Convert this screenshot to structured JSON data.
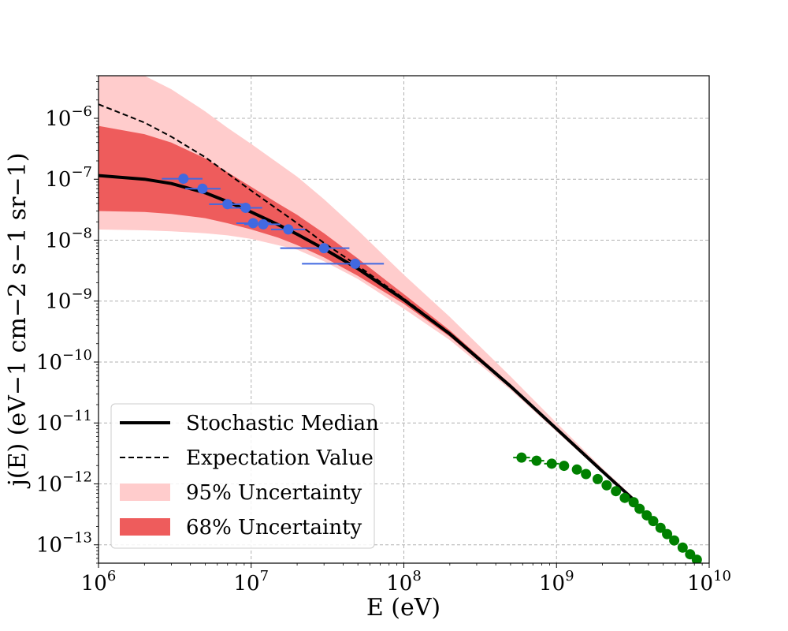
{
  "chart_data": {
    "type": "line",
    "xlabel": "E (eV)",
    "ylabel": "j(E) (eV−1 cm−2 s−1 sr−1)",
    "xscale": "log",
    "yscale": "log",
    "xlim": [
      1000000.0,
      10000000000.0
    ],
    "ylim": [
      5e-14,
      5e-06
    ],
    "grid": true,
    "legend_position": "bottom-left",
    "x_ticks": [
      {
        "value": 1000000.0,
        "base": "10",
        "exp": "6"
      },
      {
        "value": 10000000.0,
        "base": "10",
        "exp": "7"
      },
      {
        "value": 100000000.0,
        "base": "10",
        "exp": "8"
      },
      {
        "value": 1000000000.0,
        "base": "10",
        "exp": "9"
      },
      {
        "value": 10000000000.0,
        "base": "10",
        "exp": "10"
      }
    ],
    "y_ticks": [
      {
        "value": 1e-13,
        "base": "10",
        "exp": "−13"
      },
      {
        "value": 1e-12,
        "base": "10",
        "exp": "−12"
      },
      {
        "value": 1e-11,
        "base": "10",
        "exp": "−11"
      },
      {
        "value": 1e-10,
        "base": "10",
        "exp": "−10"
      },
      {
        "value": 1e-09,
        "base": "10",
        "exp": "−9"
      },
      {
        "value": 1e-08,
        "base": "10",
        "exp": "−8"
      },
      {
        "value": 1e-07,
        "base": "10",
        "exp": "−7"
      },
      {
        "value": 1e-06,
        "base": "10",
        "exp": "−6"
      }
    ],
    "series": [
      {
        "name": "Stochastic Median",
        "style": "solid",
        "color": "#000000",
        "x": [
          1000000.0,
          2000000.0,
          3000000.0,
          5000000.0,
          7000000.0,
          10000000.0,
          15000000.0,
          20000000.0,
          30000000.0,
          50000000.0,
          100000000.0,
          200000000.0,
          500000000.0,
          1000000000.0,
          2000000000.0,
          3200000000.0
        ],
        "y": [
          1.15e-07,
          1e-07,
          8.5e-08,
          6e-08,
          4.3e-08,
          2.9e-08,
          1.8e-08,
          1.25e-08,
          7.2e-09,
          3.4e-09,
          1.05e-09,
          2.9e-10,
          4e-11,
          8e-12,
          1.6e-12,
          5.5e-13
        ]
      },
      {
        "name": "Expectation Value",
        "style": "dashed",
        "color": "#000000",
        "x": [
          1000000.0,
          2000000.0,
          3000000.0,
          5000000.0,
          7000000.0,
          10000000.0,
          20000000.0,
          30000000.0,
          50000000.0,
          100000000.0,
          200000000.0,
          500000000.0,
          1000000000.0,
          2000000000.0,
          3200000000.0
        ],
        "y": [
          1.7e-06,
          8.5e-07,
          5e-07,
          2.3e-07,
          1.25e-07,
          6.5e-08,
          1.9e-08,
          9e-09,
          3.8e-09,
          1.1e-09,
          3e-10,
          4.1e-11,
          8.2e-12,
          1.65e-12,
          5.6e-13
        ]
      }
    ],
    "bands": [
      {
        "name": "95% Uncertainty",
        "color": "#ffcccc",
        "x": [
          1000000.0,
          2000000.0,
          3000000.0,
          5000000.0,
          7000000.0,
          10000000.0,
          20000000.0,
          30000000.0,
          50000000.0,
          100000000.0,
          200000000.0,
          500000000.0,
          1000000000.0,
          2000000000.0,
          3200000000.0
        ],
        "upper": [
          5e-06,
          5e-06,
          3e-06,
          1.3e-06,
          7e-07,
          3.8e-07,
          1.1e-07,
          4.7e-08,
          1.45e-08,
          2.7e-09,
          5.5e-10,
          5.8e-11,
          1e-11,
          1.8e-12,
          6e-13
        ],
        "lower": [
          1.5e-08,
          1.45e-08,
          1.4e-08,
          1.3e-08,
          1.2e-08,
          1.05e-08,
          7e-09,
          4.5e-09,
          2.3e-09,
          7.5e-10,
          2.3e-10,
          3.5e-11,
          7.2e-12,
          1.5e-12,
          5.2e-13
        ]
      },
      {
        "name": "68% Uncertainty",
        "color": "#ee5c5c",
        "x": [
          1000000.0,
          2000000.0,
          3000000.0,
          5000000.0,
          7000000.0,
          10000000.0,
          15000000.0,
          20000000.0,
          30000000.0,
          50000000.0,
          100000000.0,
          200000000.0,
          500000000.0,
          1000000000.0,
          2000000000.0,
          3200000000.0
        ],
        "upper": [
          7.5e-07,
          5.5e-07,
          4e-07,
          2.2e-07,
          1.3e-07,
          7.5e-08,
          4e-08,
          2.6e-08,
          1.3e-08,
          5e-09,
          1.3e-09,
          3.3e-10,
          4.3e-11,
          8.4e-12,
          1.7e-12,
          5.7e-13
        ],
        "lower": [
          3e-08,
          2.9e-08,
          2.7e-08,
          2.3e-08,
          1.9e-08,
          1.5e-08,
          1.1e-08,
          8.3e-09,
          5.2e-09,
          2.6e-09,
          9e-10,
          2.6e-10,
          3.8e-11,
          7.7e-12,
          1.55e-12,
          5.3e-13
        ]
      }
    ],
    "data_points": [
      {
        "color": "#4169e1",
        "points": [
          {
            "x": 3600000.0,
            "y": 1.02e-07,
            "xerr": [
              2600000.0,
              4800000.0
            ]
          },
          {
            "x": 4800000.0,
            "y": 7e-08,
            "xerr": [
              3700000.0,
              6300000.0
            ]
          },
          {
            "x": 7000000.0,
            "y": 3.9e-08,
            "xerr": [
              5300000.0,
              9000000.0
            ]
          },
          {
            "x": 9200000.0,
            "y": 3.4e-08,
            "xerr": [
              6900000.0,
              11800000.0
            ]
          },
          {
            "x": 10300000.0,
            "y": 1.9e-08,
            "xerr": [
              8000000.0,
              13500000.0
            ]
          },
          {
            "x": 12000000.0,
            "y": 1.82e-08,
            "xerr": [
              9000000.0,
              15500000.0
            ]
          },
          {
            "x": 17500000.0,
            "y": 1.5e-08,
            "xerr": [
              13500000.0,
              22500000.0
            ]
          },
          {
            "x": 30000000.0,
            "y": 7.4e-09,
            "xerr": [
              15500000.0,
              44000000.0
            ]
          },
          {
            "x": 48000000.0,
            "y": 4.1e-09,
            "xerr": [
              21500000.0,
              74000000.0
            ]
          }
        ]
      },
      {
        "color": "#008000",
        "points": [
          {
            "x": 590000000.0,
            "y": 2.7e-12,
            "xerr": [
              520000000.0,
              670000000.0
            ]
          },
          {
            "x": 740000000.0,
            "y": 2.4e-12,
            "xerr": [
              660000000.0,
              830000000.0
            ]
          },
          {
            "x": 930000000.0,
            "y": 2.15e-12,
            "xerr": [
              830000000.0,
              1040000000.0
            ]
          },
          {
            "x": 1120000000.0,
            "y": 1.98e-12,
            "xerr": null
          },
          {
            "x": 1360000000.0,
            "y": 1.72e-12,
            "xerr": null
          },
          {
            "x": 1560000000.0,
            "y": 1.45e-12,
            "xerr": null
          },
          {
            "x": 1860000000.0,
            "y": 1.2e-12,
            "xerr": null
          },
          {
            "x": 2130000000.0,
            "y": 9.5e-13,
            "xerr": null
          },
          {
            "x": 2450000000.0,
            "y": 7.6e-13,
            "xerr": null
          },
          {
            "x": 2800000000.0,
            "y": 5.9e-13,
            "xerr": null
          },
          {
            "x": 3200000000.0,
            "y": 5e-13,
            "xerr": null
          },
          {
            "x": 3500000000.0,
            "y": 3.9e-13,
            "xerr": null
          },
          {
            "x": 3900000000.0,
            "y": 3.05e-13,
            "xerr": null
          },
          {
            "x": 4300000000.0,
            "y": 2.45e-13,
            "xerr": null
          },
          {
            "x": 4800000000.0,
            "y": 1.9e-13,
            "xerr": null
          },
          {
            "x": 5300000000.0,
            "y": 1.5e-13,
            "xerr": null
          },
          {
            "x": 5900000000.0,
            "y": 1.18e-13,
            "xerr": null
          },
          {
            "x": 6700000000.0,
            "y": 9e-14,
            "xerr": null
          },
          {
            "x": 7500000000.0,
            "y": 7e-14,
            "xerr": null
          },
          {
            "x": 8300000000.0,
            "y": 5.7e-14,
            "xerr": null
          }
        ]
      }
    ],
    "legend": [
      {
        "label": "Stochastic Median",
        "kind": "line-solid"
      },
      {
        "label": "Expectation Value",
        "kind": "line-dashed"
      },
      {
        "label": "95% Uncertainty",
        "kind": "patch-light"
      },
      {
        "label": "68% Uncertainty",
        "kind": "patch-dark"
      }
    ]
  }
}
